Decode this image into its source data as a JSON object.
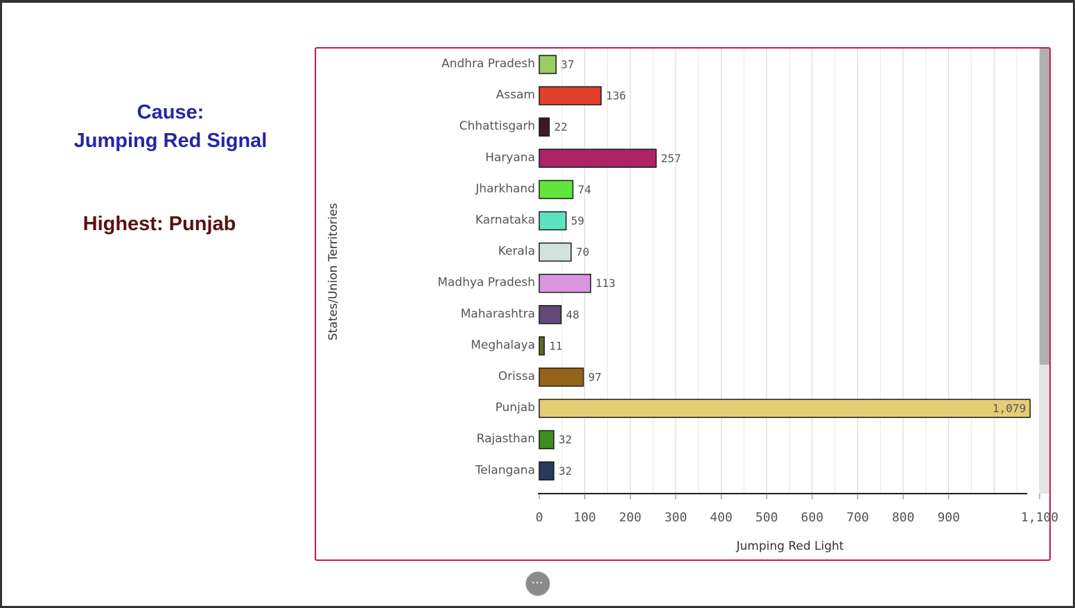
{
  "left_panel": {
    "cause_line1": "Cause:",
    "cause_line2": "Jumping Red Signal",
    "highest": "Highest: Punjab"
  },
  "more_button": {
    "label": "···",
    "icon": "ellipsis-icon"
  },
  "colors": {
    "panel_border": "#c2184b",
    "cause_text": "#2525a8",
    "highest_text": "#5a1010"
  },
  "chart_data": {
    "type": "bar",
    "orientation": "horizontal",
    "xlabel": "Jumping Red Light",
    "ylabel": "States/Union Territories",
    "xlim": [
      0,
      1100
    ],
    "xticks": [
      {
        "value": 0,
        "label": "0"
      },
      {
        "value": 100,
        "label": "100"
      },
      {
        "value": 200,
        "label": "200"
      },
      {
        "value": 300,
        "label": "300"
      },
      {
        "value": 400,
        "label": "400"
      },
      {
        "value": 500,
        "label": "500"
      },
      {
        "value": 600,
        "label": "600"
      },
      {
        "value": 700,
        "label": "700"
      },
      {
        "value": 800,
        "label": "800"
      },
      {
        "value": 900,
        "label": "900"
      },
      {
        "value": 1100,
        "label": "1,100"
      }
    ],
    "grid": true,
    "categories": [
      "Andhra Pradesh",
      "Assam",
      "Chhattisgarh",
      "Haryana",
      "Jharkhand",
      "Karnataka",
      "Kerala",
      "Madhya Pradesh",
      "Maharashtra",
      "Meghalaya",
      "Orissa",
      "Punjab",
      "Rajasthan",
      "Telangana"
    ],
    "values": [
      37,
      136,
      22,
      257,
      74,
      59,
      70,
      113,
      48,
      11,
      97,
      1079,
      32,
      32
    ],
    "value_labels": [
      "37",
      "136",
      "22",
      "257",
      "74",
      "59",
      "70",
      "113",
      "48",
      "11",
      "97",
      "1,079",
      "32",
      "32"
    ],
    "colors": [
      "#9acd64",
      "#e0402c",
      "#3d1a22",
      "#ad2366",
      "#62e63c",
      "#5ee3c0",
      "#d2e2dc",
      "#d996df",
      "#63467a",
      "#5e6a28",
      "#956418",
      "#e4cd74",
      "#3f8c22",
      "#263a59"
    ]
  }
}
